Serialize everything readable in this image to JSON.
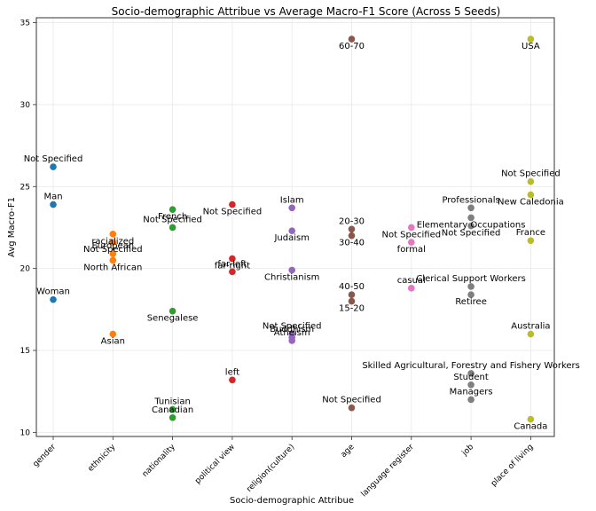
{
  "chart_data": {
    "type": "scatter",
    "title": "Socio-demographic Attribue vs Average Macro-F1 Score (Across 5 Seeds)",
    "xlabel": "Socio-demographic Attribue",
    "ylabel": "Avg Macro-F1",
    "ylim": [
      9.75,
      35.3
    ],
    "yticks": [
      10,
      15,
      20,
      25,
      30,
      35
    ],
    "grid": true,
    "categories": [
      "gender",
      "ethnicity",
      "nationality",
      "political view",
      "religion(culture)",
      "age",
      "language register",
      "job",
      "place of living"
    ],
    "series": [
      {
        "name": "gender",
        "color": "#1f77b4",
        "points": [
          {
            "label": "Not Specified",
            "value": 26.2,
            "anchor": "above"
          },
          {
            "label": "Man",
            "value": 23.9,
            "anchor": "above"
          },
          {
            "label": "Woman",
            "value": 18.1,
            "anchor": "above"
          }
        ]
      },
      {
        "name": "ethnicity",
        "color": "#ff7f0e",
        "points": [
          {
            "label": "racialized",
            "value": 22.1,
            "anchor": "below"
          },
          {
            "label": "Not Specified",
            "value": 21.6,
            "anchor": "below"
          },
          {
            "label": "European",
            "value": 20.9,
            "anchor": "above"
          },
          {
            "label": "North African",
            "value": 20.5,
            "anchor": "below"
          },
          {
            "label": "Asian",
            "value": 16.0,
            "anchor": "below"
          }
        ]
      },
      {
        "name": "nationality",
        "color": "#2ca02c",
        "points": [
          {
            "label": "French",
            "value": 23.6,
            "anchor": "below"
          },
          {
            "label": "Not Specified",
            "value": 22.5,
            "anchor": "above"
          },
          {
            "label": "Senegalese",
            "value": 17.4,
            "anchor": "below"
          },
          {
            "label": "Tunisian",
            "value": 11.4,
            "anchor": "above"
          },
          {
            "label": "Canadian",
            "value": 10.9,
            "anchor": "above"
          }
        ]
      },
      {
        "name": "political view",
        "color": "#d62728",
        "points": [
          {
            "label": "Not Specified",
            "value": 23.9,
            "anchor": "below"
          },
          {
            "label": "far-right",
            "value": 20.6,
            "anchor": "below"
          },
          {
            "label": "far-left",
            "value": 19.8,
            "anchor": "above"
          },
          {
            "label": "left",
            "value": 13.2,
            "anchor": "above"
          }
        ]
      },
      {
        "name": "religion(culture)",
        "color": "#9467bd",
        "points": [
          {
            "label": "Islam",
            "value": 23.7,
            "anchor": "above"
          },
          {
            "label": "Judaism",
            "value": 22.3,
            "anchor": "below"
          },
          {
            "label": "Christianism",
            "value": 19.9,
            "anchor": "below"
          },
          {
            "label": "Not Specified",
            "value": 16.0,
            "anchor": "above"
          },
          {
            "label": "Buddhism",
            "value": 15.8,
            "anchor": "above"
          },
          {
            "label": "Atheism",
            "value": 15.6,
            "anchor": "above"
          }
        ]
      },
      {
        "name": "age",
        "color": "#8c564b",
        "points": [
          {
            "label": "60-70",
            "value": 34.0,
            "anchor": "below"
          },
          {
            "label": "20-30",
            "value": 22.4,
            "anchor": "above"
          },
          {
            "label": "30-40",
            "value": 22.0,
            "anchor": "below"
          },
          {
            "label": "40-50",
            "value": 18.4,
            "anchor": "above"
          },
          {
            "label": "15-20",
            "value": 18.0,
            "anchor": "below"
          },
          {
            "label": "Not Specified",
            "value": 11.5,
            "anchor": "above"
          }
        ]
      },
      {
        "name": "language register",
        "color": "#e377c2",
        "points": [
          {
            "label": "Not Specified",
            "value": 22.5,
            "anchor": "below"
          },
          {
            "label": "formal",
            "value": 21.6,
            "anchor": "below"
          },
          {
            "label": "casual",
            "value": 18.8,
            "anchor": "above"
          }
        ]
      },
      {
        "name": "job",
        "color": "#7f7f7f",
        "points": [
          {
            "label": "Professionals",
            "value": 23.7,
            "anchor": "above"
          },
          {
            "label": "Elementary Occupations",
            "value": 23.1,
            "anchor": "below"
          },
          {
            "label": "Not Specified",
            "value": 22.6,
            "anchor": "below"
          },
          {
            "label": "Clerical Support Workers",
            "value": 18.9,
            "anchor": "above"
          },
          {
            "label": "Retiree",
            "value": 18.4,
            "anchor": "below"
          },
          {
            "label": "Skilled Agricultural, Forestry and Fishery Workers",
            "value": 13.6,
            "anchor": "above"
          },
          {
            "label": "Student",
            "value": 12.9,
            "anchor": "above"
          },
          {
            "label": "Managers",
            "value": 12.0,
            "anchor": "above"
          }
        ]
      },
      {
        "name": "place of living",
        "color": "#bcbd22",
        "points": [
          {
            "label": "USA",
            "value": 34.0,
            "anchor": "below"
          },
          {
            "label": "Not Specified",
            "value": 25.3,
            "anchor": "above"
          },
          {
            "label": "New Caledonia",
            "value": 24.5,
            "anchor": "below"
          },
          {
            "label": "France",
            "value": 21.7,
            "anchor": "above"
          },
          {
            "label": "Australia",
            "value": 16.0,
            "anchor": "above"
          },
          {
            "label": "Canada",
            "value": 10.8,
            "anchor": "below"
          }
        ]
      }
    ]
  }
}
